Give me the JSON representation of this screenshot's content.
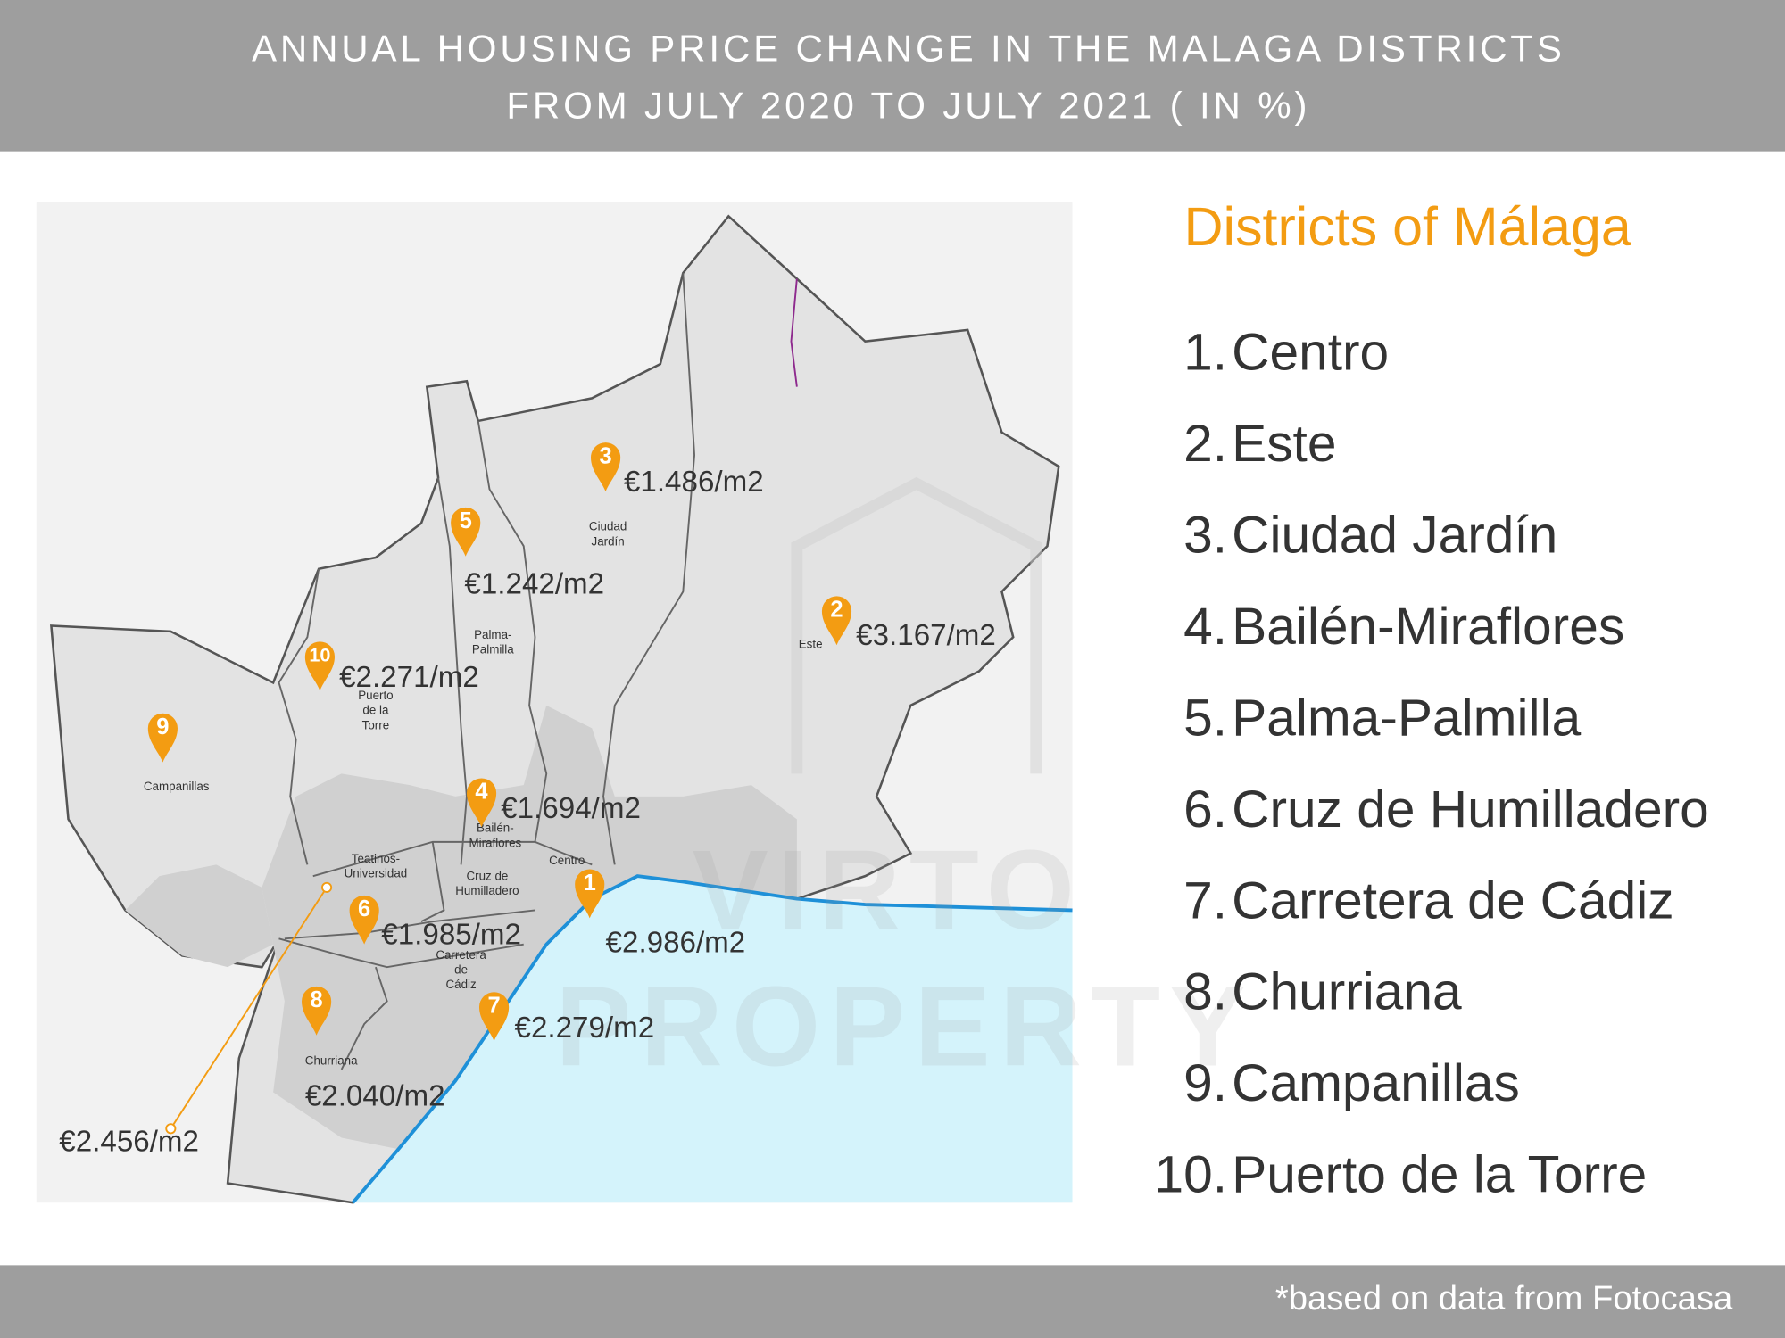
{
  "header": {
    "title_lines": [
      "ANNUAL HOUSING PRICE CHANGE IN THE MALAGA DISTRICTS",
      "FROM JULY 2020 TO JULY 2021 ( IN %)"
    ]
  },
  "map": {
    "watermark": [
      "VIRTO",
      "PROPERTY"
    ],
    "district_labels": [
      {
        "lines": [
          "Ciudad",
          "Jardín"
        ]
      },
      {
        "lines": [
          "Este"
        ]
      },
      {
        "lines": [
          "Palma-",
          "Palmilla"
        ]
      },
      {
        "lines": [
          "Puerto",
          "de la",
          "Torre"
        ]
      },
      {
        "lines": [
          "Campanillas"
        ]
      },
      {
        "lines": [
          "Bailén-",
          "Miraflores"
        ]
      },
      {
        "lines": [
          "Centro"
        ]
      },
      {
        "lines": [
          "Teatinos-",
          "Universidad"
        ]
      },
      {
        "lines": [
          "Cruz de",
          "Humilladero"
        ]
      },
      {
        "lines": [
          "Carretera",
          "de",
          "Cádiz"
        ]
      },
      {
        "lines": [
          "Churriana"
        ]
      }
    ],
    "markers": [
      {
        "number": "1",
        "price": "€2.986/m2"
      },
      {
        "number": "2",
        "price": "€3.167/m2"
      },
      {
        "number": "3",
        "price": "€1.486/m2"
      },
      {
        "number": "4",
        "price": "€1.694/m2"
      },
      {
        "number": "5",
        "price": "€1.242/m2"
      },
      {
        "number": "6",
        "price": "€1.985/m2"
      },
      {
        "number": "7",
        "price": "€2.279/m2"
      },
      {
        "number": "8",
        "price": "€2.040/m2"
      },
      {
        "number": "9"
      },
      {
        "number": "10",
        "price": "€2.271/m2"
      }
    ],
    "callout_price": "€2.456/m2"
  },
  "legend": {
    "title": "Districts of Málaga",
    "items": [
      {
        "number": "1.",
        "name": "Centro"
      },
      {
        "number": "2.",
        "name": "Este"
      },
      {
        "number": "3.",
        "name": "Ciudad Jardín"
      },
      {
        "number": "4.",
        "name": "Bailén-Miraflores"
      },
      {
        "number": "5.",
        "name": "Palma-Palmilla"
      },
      {
        "number": "6.",
        "name": "Cruz de Humilladero"
      },
      {
        "number": "7.",
        "name": "Carretera de Cádiz"
      },
      {
        "number": "8.",
        "name": "Churriana"
      },
      {
        "number": "9.",
        "name": "Campanillas"
      },
      {
        "number": "10.",
        "name": "Puerto de la Torre"
      }
    ]
  },
  "footer": {
    "note": "*based on data from Fotocasa"
  }
}
